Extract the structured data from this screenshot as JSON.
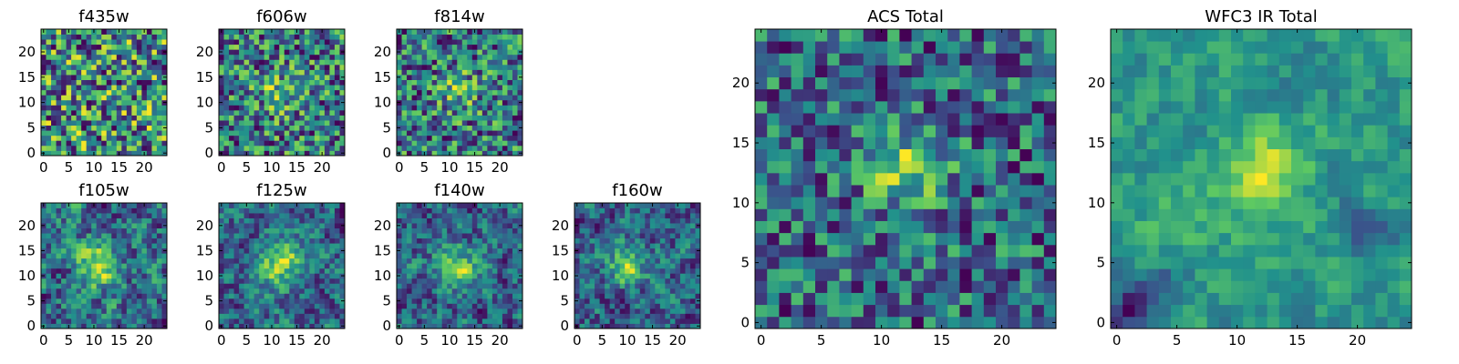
{
  "figure": {
    "colormap": "viridis"
  },
  "chart_data": [
    {
      "type": "heatmap",
      "id": "f435w",
      "title": "f435w",
      "shape": [
        25,
        25
      ],
      "xticks": [
        0,
        5,
        10,
        15,
        20
      ],
      "yticks": [
        0,
        5,
        10,
        15,
        20
      ],
      "xlim": [
        -0.5,
        24.5
      ],
      "ylim": [
        -0.5,
        24.5
      ],
      "value_range": [
        0,
        1
      ],
      "pattern": "uniform noise, no visible source"
    },
    {
      "type": "heatmap",
      "id": "f606w",
      "title": "f606w",
      "shape": [
        25,
        25
      ],
      "xticks": [
        0,
        5,
        10,
        15,
        20
      ],
      "yticks": [
        0,
        5,
        10,
        15,
        20
      ],
      "xlim": [
        -0.5,
        24.5
      ],
      "ylim": [
        -0.5,
        24.5
      ],
      "value_range": [
        0,
        1
      ],
      "pattern": "noise with faint central source"
    },
    {
      "type": "heatmap",
      "id": "f814w",
      "title": "f814w",
      "shape": [
        25,
        25
      ],
      "xticks": [
        0,
        5,
        10,
        15,
        20
      ],
      "yticks": [
        0,
        5,
        10,
        15,
        20
      ],
      "xlim": [
        -0.5,
        24.5
      ],
      "ylim": [
        -0.5,
        24.5
      ],
      "value_range": [
        0,
        1
      ],
      "pattern": "noise with faint central source"
    },
    {
      "type": "heatmap",
      "id": "f105w",
      "title": "f105w",
      "shape": [
        25,
        25
      ],
      "xticks": [
        0,
        5,
        10,
        15,
        20
      ],
      "yticks": [
        0,
        5,
        10,
        15,
        20
      ],
      "xlim": [
        -0.5,
        24.5
      ],
      "ylim": [
        -0.5,
        24.5
      ],
      "value_range": [
        0,
        1
      ],
      "pattern": "smoothed noise, bright near (11,12)"
    },
    {
      "type": "heatmap",
      "id": "f125w",
      "title": "f125w",
      "shape": [
        25,
        25
      ],
      "xticks": [
        0,
        5,
        10,
        15,
        20
      ],
      "yticks": [
        0,
        5,
        10,
        15,
        20
      ],
      "xlim": [
        -0.5,
        24.5
      ],
      "ylim": [
        -0.5,
        24.5
      ],
      "value_range": [
        0,
        1
      ],
      "pattern": "smoothed noise, bright diagonal near center"
    },
    {
      "type": "heatmap",
      "id": "f140w",
      "title": "f140w",
      "shape": [
        25,
        25
      ],
      "xticks": [
        0,
        5,
        10,
        15,
        20
      ],
      "yticks": [
        0,
        5,
        10,
        15,
        20
      ],
      "xlim": [
        -0.5,
        24.5
      ],
      "ylim": [
        -0.5,
        24.5
      ],
      "value_range": [
        0,
        1
      ],
      "pattern": "smoothed noise, bright near center"
    },
    {
      "type": "heatmap",
      "id": "f160w",
      "title": "f160w",
      "shape": [
        25,
        25
      ],
      "xticks": [
        0,
        5,
        10,
        15,
        20
      ],
      "yticks": [
        0,
        5,
        10,
        15,
        20
      ],
      "xlim": [
        -0.5,
        24.5
      ],
      "ylim": [
        -0.5,
        24.5
      ],
      "value_range": [
        0,
        1
      ],
      "pattern": "smoothed noise, bright near (10,12)"
    },
    {
      "type": "heatmap",
      "id": "acs_total",
      "title": "ACS Total",
      "shape": [
        25,
        25
      ],
      "xticks": [
        0,
        5,
        10,
        15,
        20
      ],
      "yticks": [
        0,
        5,
        10,
        15,
        20
      ],
      "xlim": [
        -0.5,
        24.5
      ],
      "ylim": [
        -0.5,
        24.5
      ],
      "value_range": [
        0,
        1
      ],
      "pattern": "noise with bright source at (12,13)"
    },
    {
      "type": "heatmap",
      "id": "wfc3_ir_total",
      "title": "WFC3 IR Total",
      "shape": [
        25,
        25
      ],
      "xticks": [
        0,
        5,
        10,
        15,
        20
      ],
      "yticks": [
        0,
        5,
        10,
        15,
        20
      ],
      "xlim": [
        -0.5,
        24.5
      ],
      "ylim": [
        -0.5,
        24.5
      ],
      "value_range": [
        0,
        1
      ],
      "pattern": "smooth noise with bright source at (12,13), dark blobs lower-left"
    }
  ]
}
